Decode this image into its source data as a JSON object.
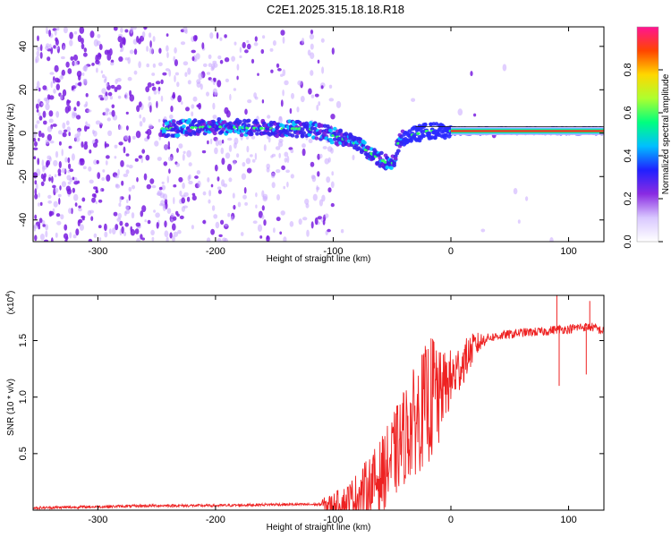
{
  "page_title": "C2E1.2025.315.18.18.R18",
  "chart_data": [
    {
      "type": "heatmap",
      "title": "C2E1.2025.315.18.18.R18",
      "xlabel": "Height of straight line (km)",
      "ylabel": "Frequency (Hz)",
      "xlim": [
        -355,
        130
      ],
      "ylim": [
        -50,
        49
      ],
      "x_ticks": [
        -300,
        -200,
        -100,
        0,
        100
      ],
      "x_tick_labels": [
        "-300",
        "-200",
        "-100",
        "0",
        "100"
      ],
      "y_ticks": [
        -40,
        -20,
        0,
        20,
        40
      ],
      "y_tick_labels": [
        "-40",
        "-20",
        "0",
        "20",
        "40"
      ],
      "colorbar": {
        "label": "Normalized spectral amplitude",
        "range": [
          0,
          1
        ],
        "ticks": [
          0.0,
          0.2,
          0.4,
          0.6,
          0.8
        ],
        "tick_labels": [
          "0.0",
          "0.2",
          "0.4",
          "0.6",
          "0.8"
        ],
        "colormap": [
          "#ffffff",
          "#d9c8ff",
          "#8a2be2",
          "#2020ff",
          "#00bfff",
          "#00ff7f",
          "#adff2f",
          "#ffd700",
          "#ff4500",
          "#ff1493"
        ]
      },
      "ridge": [
        {
          "x": -245,
          "y": 2
        },
        {
          "x": -200,
          "y": 3
        },
        {
          "x": -150,
          "y": 2
        },
        {
          "x": -120,
          "y": 2
        },
        {
          "x": -100,
          "y": -1
        },
        {
          "x": -80,
          "y": -5
        },
        {
          "x": -60,
          "y": -12
        },
        {
          "x": -50,
          "y": -15
        },
        {
          "x": -45,
          "y": -5
        },
        {
          "x": -40,
          "y": -2
        },
        {
          "x": -20,
          "y": 1
        },
        {
          "x": 0,
          "y": 1
        },
        {
          "x": 50,
          "y": 1
        },
        {
          "x": 100,
          "y": 1
        },
        {
          "x": 130,
          "y": 1
        }
      ]
    },
    {
      "type": "line",
      "xlabel": "Height of straight line (km)",
      "ylabel": "SNR (10 * v/v)",
      "y_multiplier_label": "(x10",
      "y_multiplier_exp": "4",
      "y_multiplier_close": ")",
      "xlim": [
        -355,
        130
      ],
      "ylim": [
        0,
        1.9
      ],
      "x_ticks": [
        -300,
        -200,
        -100,
        0,
        100
      ],
      "x_tick_labels": [
        "-300",
        "-200",
        "-100",
        "0",
        "100"
      ],
      "y_ticks": [
        0.5,
        1.0,
        1.5
      ],
      "y_tick_labels": [
        "0.5",
        "1.0",
        "1.5"
      ],
      "color": "#ee2222",
      "series": [
        {
          "name": "SNR",
          "x": [
            -355,
            -300,
            -250,
            -200,
            -150,
            -110,
            -100,
            -90,
            -80,
            -70,
            -60,
            -50,
            -40,
            -30,
            -20,
            -10,
            0,
            10,
            20,
            30,
            40,
            60,
            80,
            90,
            100,
            110,
            120,
            130
          ],
          "y": [
            0.02,
            0.03,
            0.04,
            0.04,
            0.05,
            0.05,
            0.05,
            0.06,
            0.12,
            0.2,
            0.3,
            0.45,
            0.65,
            0.8,
            0.95,
            1.05,
            1.15,
            1.3,
            1.45,
            1.52,
            1.54,
            1.57,
            1.58,
            1.6,
            1.6,
            1.62,
            1.62,
            1.58
          ]
        }
      ],
      "spikes": [
        {
          "x": -15,
          "y": 1.5
        },
        {
          "x": 90,
          "y": 1.9
        },
        {
          "x": 92,
          "y": 1.1
        },
        {
          "x": 115,
          "y": 1.2
        },
        {
          "x": 118,
          "y": 1.85
        }
      ]
    }
  ]
}
